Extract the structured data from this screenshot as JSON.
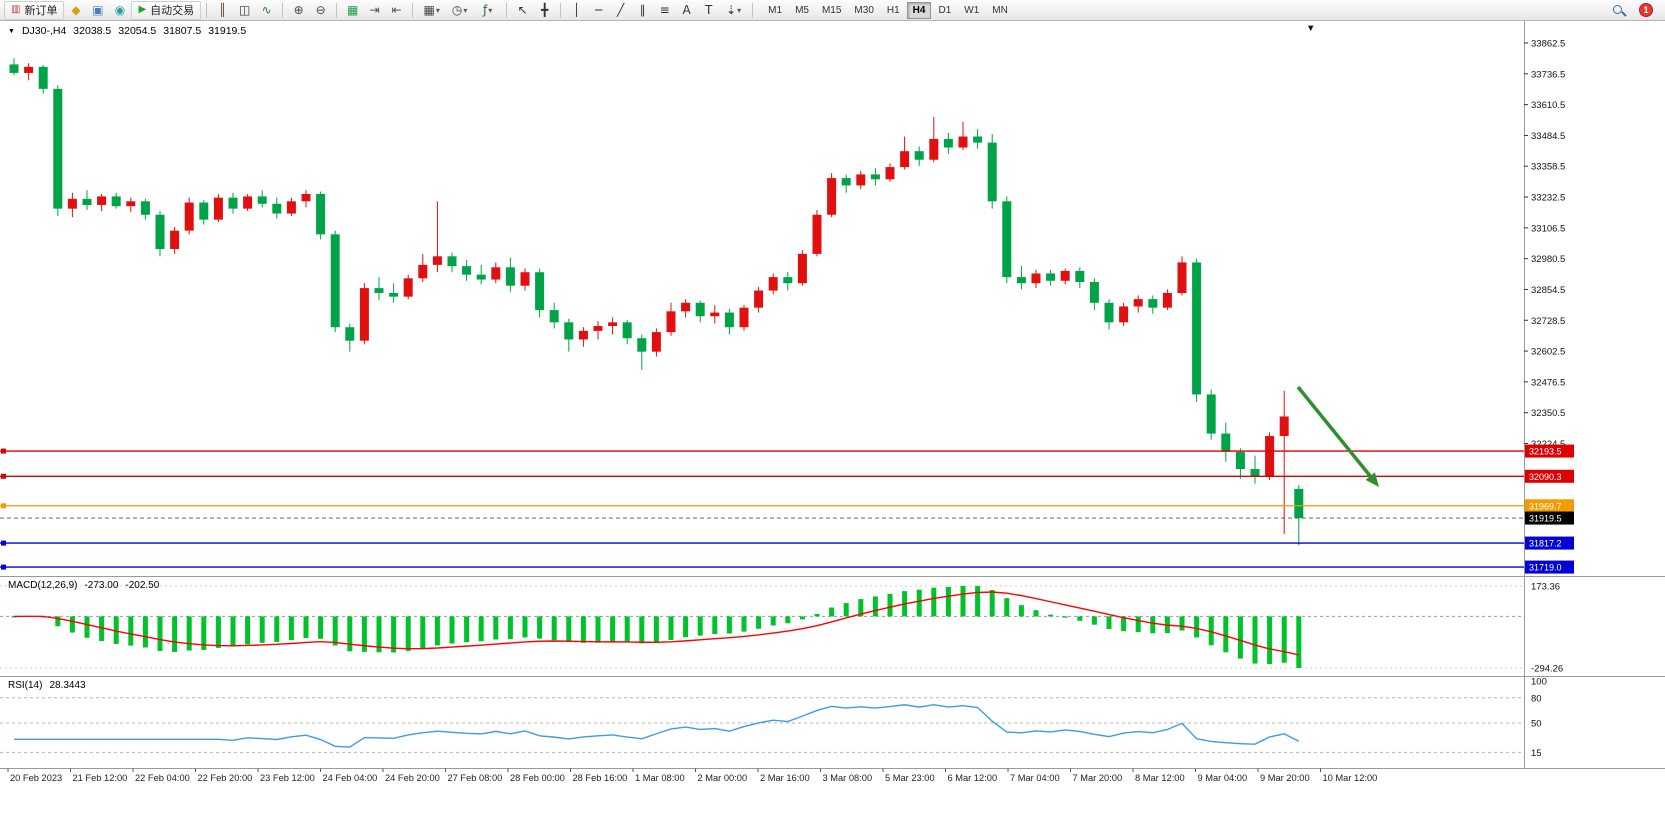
{
  "toolbar": {
    "new_order_label": "新订单",
    "autotrading_label": "自动交易",
    "timeframes": [
      "M1",
      "M5",
      "M15",
      "M30",
      "H1",
      "H4",
      "D1",
      "W1",
      "MN"
    ],
    "active_timeframe": "H4",
    "notification_count": "1",
    "items": [
      {
        "type": "button",
        "name": "new-order-button",
        "icon": "▥",
        "icon_color": "#c23b3b",
        "label": "新订单"
      },
      {
        "type": "icon",
        "name": "coins-icon",
        "glyph": "◆",
        "color": "#d8a013"
      },
      {
        "type": "icon",
        "name": "community-icon",
        "glyph": "▣",
        "color": "#4a7ebb"
      },
      {
        "type": "icon",
        "name": "sync-icon",
        "glyph": "◉",
        "color": "#2f9e9e"
      },
      {
        "type": "button",
        "name": "autotrading-button",
        "icon": "▶",
        "icon_color": "#1fa51f",
        "label": "自动交易"
      },
      {
        "type": "sep"
      },
      {
        "type": "icon",
        "name": "bar-chart-icon",
        "glyph": "║",
        "color": "#6b4f2a"
      },
      {
        "type": "icon",
        "name": "candlestick-chart-icon",
        "glyph": "◫",
        "color": "#333333"
      },
      {
        "type": "icon",
        "name": "line-chart-icon",
        "glyph": "∿",
        "color": "#2a7a2a"
      },
      {
        "type": "sep"
      },
      {
        "type": "icon",
        "name": "zoom-in-icon",
        "glyph": "⊕",
        "color": "#444444"
      },
      {
        "type": "icon",
        "name": "zoom-out-icon",
        "glyph": "⊖",
        "color": "#444444"
      },
      {
        "type": "sep"
      },
      {
        "type": "icon",
        "name": "tile-windows-icon",
        "glyph": "▦",
        "color": "#269b4e"
      },
      {
        "type": "icon",
        "name": "auto-scroll-icon",
        "glyph": "⇥",
        "color": "#555555"
      },
      {
        "type": "icon",
        "name": "chart-shift-icon",
        "glyph": "⇤",
        "color": "#555555"
      },
      {
        "type": "sep"
      },
      {
        "type": "dropdown",
        "name": "new-chart-dropdown",
        "glyph": "▦",
        "color": "#444444"
      },
      {
        "type": "dropdown",
        "name": "periods-dropdown",
        "glyph": "◷",
        "color": "#444444"
      },
      {
        "type": "dropdown",
        "name": "indicators-dropdown",
        "glyph": "ƒ",
        "color": "#2c6e2c"
      },
      {
        "type": "sep"
      },
      {
        "type": "icon",
        "name": "cursor-icon",
        "glyph": "↖",
        "color": "#333333"
      },
      {
        "type": "icon",
        "name": "crosshair-icon",
        "glyph": "╋",
        "color": "#333333"
      },
      {
        "type": "sep"
      },
      {
        "type": "icon",
        "name": "vertical-line-icon",
        "glyph": "│",
        "color": "#333333"
      },
      {
        "type": "icon",
        "name": "horizontal-line-icon",
        "glyph": "─",
        "color": "#333333"
      },
      {
        "type": "icon",
        "name": "trendline-icon",
        "glyph": "╱",
        "color": "#333333"
      },
      {
        "type": "icon",
        "name": "channel-icon",
        "glyph": "∥",
        "color": "#333333"
      },
      {
        "type": "icon",
        "name": "fibonacci-icon",
        "glyph": "≡",
        "color": "#333333"
      },
      {
        "type": "icon",
        "name": "text-icon",
        "glyph": "A",
        "color": "#333333"
      },
      {
        "type": "icon",
        "name": "label-icon",
        "glyph": "T",
        "color": "#333333"
      },
      {
        "type": "dropdown",
        "name": "arrows-dropdown",
        "glyph": "⇣",
        "color": "#333333"
      },
      {
        "type": "sep"
      }
    ]
  },
  "chart_header": {
    "symbol_tf": "DJ30-,H4",
    "open": "32038.5",
    "high": "32054.5",
    "low": "31807.5",
    "close": "31919.5"
  },
  "chart_data": {
    "type": "candlestick",
    "symbol": "DJ30-",
    "timeframe": "H4",
    "colors": {
      "bull": "#e01010",
      "bear": "#00a347",
      "macd_bar": "#00c22a",
      "macd_signal": "#ff0000",
      "rsi_line": "#3d9be9",
      "arrow": "#2f8f2f"
    },
    "y_axis": {
      "ticks": [
        33862.5,
        33736.5,
        33610.5,
        33484.5,
        33358.5,
        33232.5,
        33106.5,
        32980.5,
        32854.5,
        32728.5,
        32602.5,
        32476.5,
        32350.5,
        32224.5
      ]
    },
    "x_axis": {
      "labels": [
        "20 Feb 2023",
        "21 Feb 12:00",
        "22 Feb 04:00",
        "22 Feb 20:00",
        "23 Feb 12:00",
        "24 Feb 04:00",
        "24 Feb 20:00",
        "27 Feb 08:00",
        "28 Feb 00:00",
        "28 Feb 16:00",
        "1 Mar 08:00",
        "2 Mar 00:00",
        "2 Mar 16:00",
        "3 Mar 08:00",
        "5 Mar 23:00",
        "6 Mar 12:00",
        "7 Mar 04:00",
        "7 Mar 20:00",
        "8 Mar 12:00",
        "9 Mar 04:00",
        "9 Mar 20:00",
        "10 Mar 12:00"
      ]
    },
    "candles": [
      [
        33775,
        33800,
        33730,
        33740
      ],
      [
        33740,
        33780,
        33710,
        33765
      ],
      [
        33765,
        33772,
        33655,
        33675
      ],
      [
        33675,
        33690,
        33155,
        33185
      ],
      [
        33185,
        33250,
        33150,
        33225
      ],
      [
        33225,
        33260,
        33180,
        33200
      ],
      [
        33200,
        33245,
        33175,
        33235
      ],
      [
        33235,
        33250,
        33185,
        33195
      ],
      [
        33195,
        33230,
        33170,
        33215
      ],
      [
        33215,
        33225,
        33140,
        33160
      ],
      [
        33160,
        33175,
        32990,
        33020
      ],
      [
        33020,
        33110,
        33000,
        33095
      ],
      [
        33095,
        33230,
        33080,
        33210
      ],
      [
        33210,
        33220,
        33120,
        33140
      ],
      [
        33140,
        33245,
        33130,
        33230
      ],
      [
        33230,
        33250,
        33165,
        33185
      ],
      [
        33185,
        33245,
        33175,
        33235
      ],
      [
        33235,
        33260,
        33190,
        33205
      ],
      [
        33205,
        33230,
        33145,
        33165
      ],
      [
        33165,
        33230,
        33155,
        33215
      ],
      [
        33215,
        33260,
        33190,
        33245
      ],
      [
        33245,
        33255,
        33060,
        33080
      ],
      [
        33080,
        33095,
        32680,
        32700
      ],
      [
        32700,
        32715,
        32600,
        32645
      ],
      [
        32645,
        32880,
        32630,
        32860
      ],
      [
        32860,
        32905,
        32810,
        32840
      ],
      [
        32840,
        32880,
        32800,
        32825
      ],
      [
        32825,
        32915,
        32815,
        32900
      ],
      [
        32900,
        33000,
        32885,
        32955
      ],
      [
        32955,
        33215,
        32925,
        32990
      ],
      [
        32990,
        33005,
        32925,
        32950
      ],
      [
        32950,
        32975,
        32890,
        32915
      ],
      [
        32915,
        32955,
        32875,
        32895
      ],
      [
        32895,
        32965,
        32880,
        32945
      ],
      [
        32945,
        32985,
        32845,
        32870
      ],
      [
        32870,
        32940,
        32850,
        32925
      ],
      [
        32925,
        32940,
        32740,
        32770
      ],
      [
        32770,
        32800,
        32695,
        32720
      ],
      [
        32720,
        32735,
        32600,
        32650
      ],
      [
        32650,
        32700,
        32620,
        32685
      ],
      [
        32685,
        32725,
        32650,
        32705
      ],
      [
        32705,
        32740,
        32670,
        32720
      ],
      [
        32720,
        32730,
        32630,
        32655
      ],
      [
        32655,
        32670,
        32525,
        32600
      ],
      [
        32600,
        32695,
        32580,
        32680
      ],
      [
        32680,
        32800,
        32665,
        32765
      ],
      [
        32765,
        32815,
        32740,
        32800
      ],
      [
        32800,
        32810,
        32720,
        32745
      ],
      [
        32745,
        32790,
        32715,
        32760
      ],
      [
        32760,
        32775,
        32670,
        32700
      ],
      [
        32700,
        32790,
        32685,
        32780
      ],
      [
        32780,
        32865,
        32760,
        32850
      ],
      [
        32850,
        32920,
        32835,
        32905
      ],
      [
        32905,
        32925,
        32850,
        32880
      ],
      [
        32880,
        33015,
        32870,
        33000
      ],
      [
        33000,
        33180,
        32990,
        33160
      ],
      [
        33160,
        33330,
        33150,
        33310
      ],
      [
        33310,
        33325,
        33250,
        33280
      ],
      [
        33280,
        33340,
        33265,
        33325
      ],
      [
        33325,
        33350,
        33280,
        33305
      ],
      [
        33305,
        33370,
        33295,
        33355
      ],
      [
        33355,
        33480,
        33345,
        33420
      ],
      [
        33420,
        33440,
        33360,
        33385
      ],
      [
        33385,
        33560,
        33375,
        33470
      ],
      [
        33470,
        33495,
        33410,
        33435
      ],
      [
        33435,
        33540,
        33425,
        33480
      ],
      [
        33480,
        33510,
        33430,
        33455
      ],
      [
        33455,
        33490,
        33185,
        33215
      ],
      [
        33215,
        33235,
        32880,
        32905
      ],
      [
        32905,
        32950,
        32855,
        32880
      ],
      [
        32880,
        32935,
        32860,
        32920
      ],
      [
        32920,
        32935,
        32870,
        32890
      ],
      [
        32890,
        32940,
        32875,
        32930
      ],
      [
        32930,
        32945,
        32860,
        32885
      ],
      [
        32885,
        32900,
        32770,
        32800
      ],
      [
        32800,
        32815,
        32690,
        32720
      ],
      [
        32720,
        32800,
        32705,
        32785
      ],
      [
        32785,
        32830,
        32760,
        32815
      ],
      [
        32815,
        32830,
        32755,
        32780
      ],
      [
        32780,
        32855,
        32770,
        32840
      ],
      [
        32840,
        32990,
        32830,
        32965
      ],
      [
        32965,
        32980,
        32395,
        32425
      ],
      [
        32425,
        32445,
        32240,
        32265
      ],
      [
        32265,
        32310,
        32150,
        32190
      ],
      [
        32190,
        32205,
        32080,
        32120
      ],
      [
        32120,
        32175,
        32060,
        32090
      ],
      [
        32090,
        32270,
        32075,
        32255
      ],
      [
        32255,
        32440,
        31855,
        32335
      ],
      [
        32038.5,
        32054.5,
        31807.5,
        31919.5
      ]
    ],
    "hlines": [
      {
        "name": "resistance-line-1",
        "price": 32193.5,
        "color": "#dd0000",
        "label": "32193.5"
      },
      {
        "name": "resistance-line-2",
        "price": 32090.3,
        "color": "#dd0000",
        "label": "32090.3"
      },
      {
        "name": "support-line-orange",
        "price": 31969.7,
        "color": "#f59a00",
        "label": "31969.7"
      },
      {
        "name": "support-line-blue-1",
        "price": 31817.2,
        "color": "#0000d8",
        "label": "31817.2"
      },
      {
        "name": "support-line-blue-2",
        "price": 31719.0,
        "color": "#0000d8",
        "label": "31719.0"
      }
    ],
    "current_price": {
      "price": 31919.5,
      "label": "31919.5",
      "badge_color": "#000000"
    },
    "indicators": {
      "macd": {
        "title": "MACD(12,26,9)",
        "value_main": "-273.00",
        "value_signal": "-202.50",
        "scale_max": "173.36",
        "scale_min": "-294.26",
        "params": [
          12,
          26,
          9
        ]
      },
      "rsi": {
        "title": "RSI(14)",
        "value": "28.3443",
        "period": 14,
        "scale_labels": [
          [
            "100",
            100
          ],
          [
            "80",
            80
          ],
          [
            "50",
            50
          ],
          [
            "15",
            15
          ]
        ],
        "levels": [
          80,
          50,
          15
        ]
      }
    },
    "annotations": [
      {
        "type": "arrow",
        "color": "#2f8f2f",
        "direction": "down-right"
      }
    ]
  }
}
